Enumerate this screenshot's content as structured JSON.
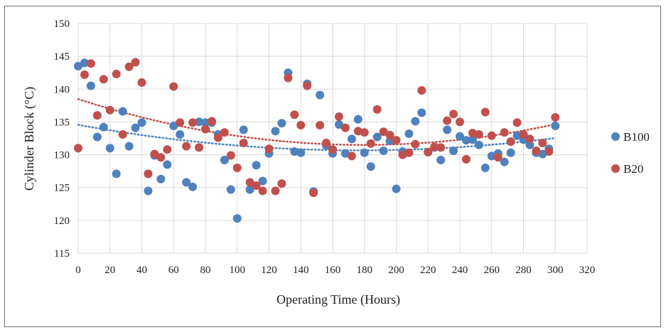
{
  "chart_data": {
    "type": "scatter",
    "xlabel": "Operating Time (Hours)",
    "ylabel": "Cylinder Block (°C)",
    "xlim": [
      0,
      320
    ],
    "ylim": [
      115,
      150
    ],
    "xticks": [
      0,
      20,
      40,
      60,
      80,
      100,
      120,
      140,
      160,
      180,
      200,
      220,
      240,
      260,
      280,
      300,
      320
    ],
    "yticks": [
      115,
      120,
      125,
      130,
      135,
      140,
      145,
      150
    ],
    "grid": true,
    "legend_position": "right",
    "series": [
      {
        "name": "B100",
        "color": "#4f81bd",
        "trendline": {
          "type": "polynomial",
          "style": "dotted",
          "x_range": [
            0,
            300
          ]
        },
        "points": [
          [
            0,
            143.5
          ],
          [
            4,
            144.0
          ],
          [
            8,
            140.5
          ],
          [
            12,
            132.7
          ],
          [
            16,
            134.2
          ],
          [
            20,
            131.0
          ],
          [
            24,
            127.1
          ],
          [
            28,
            136.6
          ],
          [
            32,
            131.3
          ],
          [
            36,
            134.1
          ],
          [
            40,
            134.9
          ],
          [
            44,
            124.5
          ],
          [
            48,
            129.9
          ],
          [
            52,
            126.3
          ],
          [
            56,
            128.5
          ],
          [
            60,
            134.4
          ],
          [
            64,
            133.1
          ],
          [
            68,
            125.8
          ],
          [
            72,
            125.1
          ],
          [
            76,
            135.0
          ],
          [
            80,
            134.9
          ],
          [
            84,
            134.9
          ],
          [
            88,
            133.1
          ],
          [
            92,
            129.2
          ],
          [
            96,
            124.7
          ],
          [
            100,
            120.3
          ],
          [
            104,
            133.8
          ],
          [
            108,
            124.7
          ],
          [
            112,
            128.4
          ],
          [
            116,
            126.0
          ],
          [
            120,
            130.2
          ],
          [
            124,
            133.6
          ],
          [
            128,
            134.8
          ],
          [
            132,
            142.5
          ],
          [
            136,
            130.5
          ],
          [
            140,
            130.3
          ],
          [
            144,
            140.8
          ],
          [
            148,
            124.4
          ],
          [
            152,
            139.1
          ],
          [
            156,
            131.4
          ],
          [
            160,
            130.2
          ],
          [
            164,
            134.6
          ],
          [
            168,
            130.2
          ],
          [
            172,
            132.4
          ],
          [
            176,
            135.4
          ],
          [
            180,
            130.3
          ],
          [
            184,
            128.2
          ],
          [
            188,
            132.7
          ],
          [
            192,
            130.6
          ],
          [
            196,
            132.1
          ],
          [
            200,
            124.8
          ],
          [
            204,
            130.5
          ],
          [
            208,
            133.2
          ],
          [
            212,
            135.1
          ],
          [
            216,
            136.4
          ],
          [
            220,
            130.4
          ],
          [
            224,
            131.1
          ],
          [
            228,
            129.2
          ],
          [
            232,
            133.8
          ],
          [
            236,
            130.6
          ],
          [
            240,
            132.8
          ],
          [
            244,
            132.2
          ],
          [
            248,
            132.3
          ],
          [
            252,
            131.5
          ],
          [
            256,
            128.0
          ],
          [
            260,
            129.8
          ],
          [
            264,
            130.2
          ],
          [
            268,
            128.9
          ],
          [
            272,
            130.3
          ],
          [
            276,
            132.9
          ],
          [
            280,
            132.3
          ],
          [
            284,
            131.5
          ],
          [
            288,
            130.3
          ],
          [
            292,
            130.1
          ],
          [
            296,
            130.9
          ],
          [
            300,
            134.4
          ]
        ]
      },
      {
        "name": "B20",
        "color": "#c0504d",
        "trendline": {
          "type": "polynomial",
          "style": "dotted",
          "x_range": [
            0,
            300
          ]
        },
        "points": [
          [
            0,
            131.0
          ],
          [
            4,
            142.2
          ],
          [
            8,
            143.9
          ],
          [
            12,
            136.0
          ],
          [
            16,
            141.5
          ],
          [
            20,
            136.8
          ],
          [
            24,
            142.3
          ],
          [
            28,
            133.1
          ],
          [
            32,
            143.4
          ],
          [
            36,
            144.1
          ],
          [
            40,
            141.0
          ],
          [
            44,
            127.1
          ],
          [
            48,
            130.1
          ],
          [
            52,
            129.6
          ],
          [
            56,
            130.8
          ],
          [
            60,
            140.4
          ],
          [
            64,
            134.9
          ],
          [
            68,
            131.3
          ],
          [
            72,
            134.9
          ],
          [
            76,
            131.1
          ],
          [
            80,
            133.9
          ],
          [
            84,
            135.1
          ],
          [
            88,
            132.6
          ],
          [
            92,
            133.4
          ],
          [
            96,
            129.9
          ],
          [
            100,
            128.0
          ],
          [
            104,
            131.8
          ],
          [
            108,
            125.8
          ],
          [
            112,
            125.3
          ],
          [
            116,
            124.5
          ],
          [
            120,
            130.9
          ],
          [
            124,
            124.5
          ],
          [
            128,
            125.6
          ],
          [
            132,
            141.7
          ],
          [
            136,
            136.1
          ],
          [
            140,
            134.5
          ],
          [
            144,
            140.5
          ],
          [
            148,
            124.2
          ],
          [
            152,
            134.5
          ],
          [
            156,
            131.8
          ],
          [
            160,
            130.8
          ],
          [
            164,
            135.8
          ],
          [
            168,
            134.1
          ],
          [
            172,
            129.8
          ],
          [
            176,
            133.6
          ],
          [
            180,
            133.4
          ],
          [
            184,
            131.7
          ],
          [
            188,
            136.9
          ],
          [
            192,
            133.5
          ],
          [
            196,
            133.0
          ],
          [
            200,
            132.2
          ],
          [
            204,
            130.0
          ],
          [
            208,
            130.3
          ],
          [
            212,
            131.6
          ],
          [
            216,
            139.8
          ],
          [
            220,
            130.4
          ],
          [
            224,
            131.2
          ],
          [
            228,
            131.1
          ],
          [
            232,
            135.2
          ],
          [
            236,
            136.2
          ],
          [
            240,
            135.0
          ],
          [
            244,
            129.3
          ],
          [
            248,
            133.3
          ],
          [
            252,
            133.1
          ],
          [
            256,
            136.5
          ],
          [
            260,
            132.9
          ],
          [
            264,
            129.6
          ],
          [
            268,
            133.4
          ],
          [
            272,
            132.0
          ],
          [
            276,
            134.9
          ],
          [
            280,
            133.1
          ],
          [
            284,
            132.4
          ],
          [
            288,
            130.6
          ],
          [
            292,
            131.8
          ],
          [
            296,
            130.5
          ],
          [
            300,
            135.7
          ]
        ]
      }
    ]
  }
}
